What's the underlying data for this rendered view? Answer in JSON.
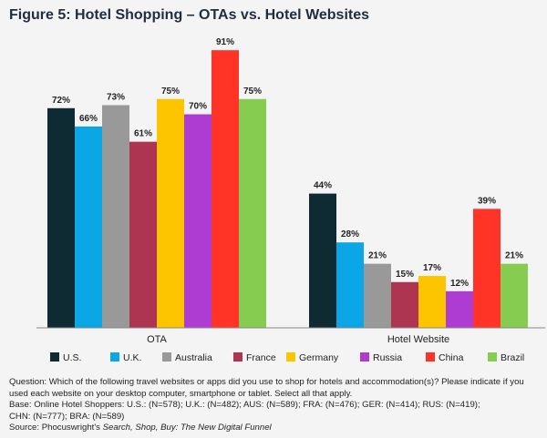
{
  "chart_data": {
    "type": "bar",
    "title": "Figure 5: Hotel Shopping – OTAs vs. Hotel Websites",
    "categories": [
      "OTA",
      "Hotel Website"
    ],
    "series": [
      {
        "name": "U.S.",
        "color": "#0e2a33",
        "values": [
          72,
          44
        ]
      },
      {
        "name": "U.K.",
        "color": "#0aa6e6",
        "values": [
          66,
          28
        ]
      },
      {
        "name": "Australia",
        "color": "#999999",
        "values": [
          73,
          21
        ]
      },
      {
        "name": "France",
        "color": "#ad3552",
        "values": [
          61,
          15
        ]
      },
      {
        "name": "Germany",
        "color": "#fdc400",
        "values": [
          75,
          17
        ]
      },
      {
        "name": "Russia",
        "color": "#ae3cd2",
        "values": [
          70,
          12
        ]
      },
      {
        "name": "China",
        "color": "#ff3426",
        "values": [
          91,
          39
        ]
      },
      {
        "name": "Brazil",
        "color": "#85cc51",
        "values": [
          75,
          21
        ]
      }
    ],
    "value_suffix": "%",
    "ylim": [
      0,
      100
    ],
    "grid": false,
    "legend": "bottom"
  },
  "notes": {
    "question": "Question: Which of the following travel websites or apps did you use to shop for hotels and accommodation(s)? Please indicate if you used each website on your desktop computer, smartphone or tablet. Select all that apply.",
    "base1": "Base: Online Hotel Shoppers: U.S.: (N=578); U.K.: (N=482); AUS: (N=589); FRA: (N=476); GER: (N=414); RUS: (N=419);",
    "base2": "CHN: (N=777); BRA: (N=589)",
    "source_prefix": "Source: Phocuswright's ",
    "source_title": "Search, Shop, Buy: The New Digital Funnel"
  }
}
